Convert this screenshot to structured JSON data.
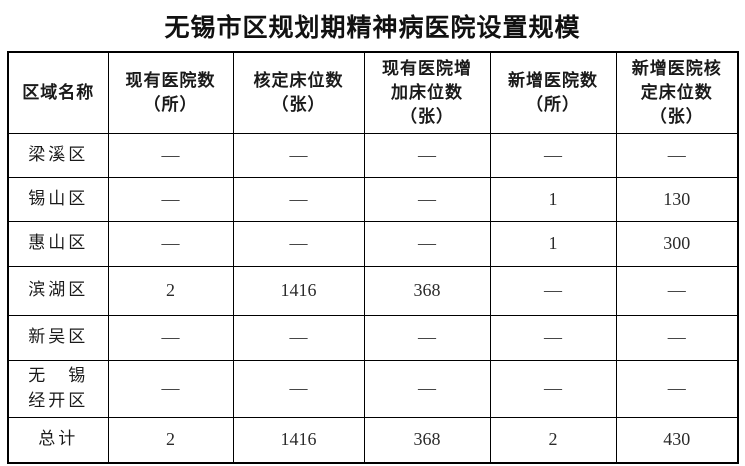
{
  "title": "无锡市区规划期精神病医院设置规模",
  "table": {
    "headers": [
      "区域名称",
      "现有医院数\n（所）",
      "核定床位数\n（张）",
      "现有医院增\n加床位数\n（张）",
      "新增医院数\n（所）",
      "新增医院核\n定床位数\n（张）"
    ],
    "rows": [
      {
        "region": "梁溪区",
        "cells": [
          "—",
          "—",
          "—",
          "—",
          "—"
        ]
      },
      {
        "region": "锡山区",
        "cells": [
          "—",
          "—",
          "—",
          "1",
          "130"
        ]
      },
      {
        "region": "惠山区",
        "cells": [
          "—",
          "—",
          "—",
          "1",
          "300"
        ]
      },
      {
        "region": "滨湖区",
        "cells": [
          "2",
          "1416",
          "368",
          "—",
          "—"
        ]
      },
      {
        "region": "新吴区",
        "cells": [
          "—",
          "—",
          "—",
          "—",
          "—"
        ]
      },
      {
        "region": "无　锡\n经开区",
        "cells": [
          "—",
          "—",
          "—",
          "—",
          "—"
        ]
      },
      {
        "region": "总计",
        "cells": [
          "2",
          "1416",
          "368",
          "2",
          "430"
        ]
      }
    ]
  },
  "colors": {
    "border": "#000000",
    "text": "#1a1a1a",
    "background": "#ffffff"
  }
}
